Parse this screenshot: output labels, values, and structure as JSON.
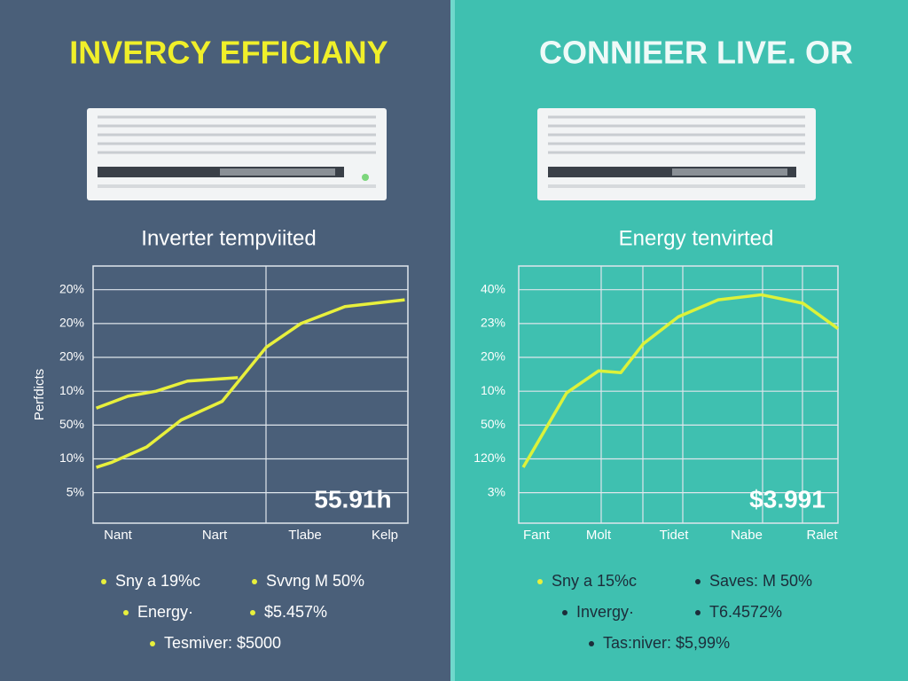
{
  "chart_data": [
    {
      "type": "line",
      "title": "INVERCY EFFICIANY",
      "subtitle": "Inverter tempviited",
      "ylabel": "Perfdicts",
      "xlim": [
        0,
        10
      ],
      "ylim": [
        -0.9,
        6.7
      ],
      "yticks": [
        {
          "value": 0,
          "label": "5%"
        },
        {
          "value": 1,
          "label": "10%"
        },
        {
          "value": 2,
          "label": "50%"
        },
        {
          "value": 3,
          "label": "10%"
        },
        {
          "value": 4,
          "label": "20%"
        },
        {
          "value": 5,
          "label": "20%"
        },
        {
          "value": 6,
          "label": "20%"
        }
      ],
      "categories": [
        "Nant",
        "Nart",
        "Tlabe",
        "Kelp"
      ],
      "series": [
        {
          "color": "#e8f03c",
          "x": [
            0.1,
            1.1,
            2,
            3,
            4.6
          ],
          "values": [
            2.5,
            2.85,
            3.0,
            3.3,
            3.4
          ]
        },
        {
          "color": "#e8f03c",
          "x": [
            0.1,
            0.6,
            1.7,
            2.8,
            4.1,
            5.5,
            6.6,
            8,
            9.9
          ],
          "values": [
            0.75,
            0.9,
            1.35,
            2.15,
            2.7,
            4.3,
            5.0,
            5.5,
            5.7
          ]
        }
      ],
      "annotation": "55.91h",
      "legend_items": [
        "Sny a 19%c",
        "Svvng M 50%",
        "Energy·",
        "$5.457%",
        "Tesmiver: $5000"
      ]
    },
    {
      "type": "line",
      "title": "CONNIEER LIVE. OR",
      "subtitle": "Energy tenvirted",
      "xlim": [
        0,
        10
      ],
      "ylim": [
        -0.9,
        6.7
      ],
      "yticks": [
        {
          "value": 0,
          "label": "3%"
        },
        {
          "value": 1,
          "label": "120%"
        },
        {
          "value": 2,
          "label": "50%"
        },
        {
          "value": 3,
          "label": "10%"
        },
        {
          "value": 4,
          "label": "20%"
        },
        {
          "value": 5,
          "label": "23%"
        },
        {
          "value": 6,
          "label": "40%"
        }
      ],
      "categories": [
        "Fant",
        "Molt",
        "Tidet",
        "Nabe",
        "Ralet"
      ],
      "series": [
        {
          "color": "#dcf23a",
          "x": [
            0.14,
            1.5,
            2.5,
            3.2,
            3.9,
            5,
            6.25,
            7.6,
            8.9,
            10
          ],
          "values": [
            0.75,
            2.95,
            3.6,
            3.55,
            4.4,
            5.2,
            5.7,
            5.85,
            5.6,
            4.85
          ]
        }
      ],
      "annotation": "$3.991",
      "legend_items": [
        "Sny a 15%c",
        "Saves: M 50%",
        "Invergy·",
        "T6.4572%",
        "Tas:niver: $5,99%"
      ]
    }
  ]
}
